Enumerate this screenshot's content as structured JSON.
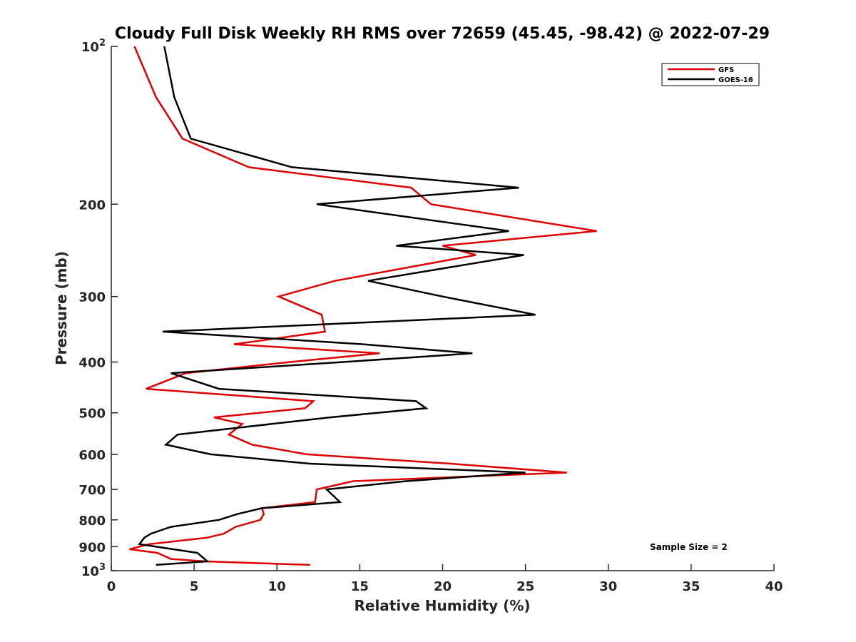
{
  "chart_data": {
    "type": "line",
    "title": "Cloudy Full Disk Weekly RH RMS over 72659 (45.45, -98.42) @ 2022-07-29",
    "xlabel": "Relative Humidity (%)",
    "ylabel": "Pressure (mb)",
    "xlim": [
      0,
      40
    ],
    "ylim": [
      100,
      1000
    ],
    "yscale": "log",
    "y_reversed": true,
    "x_ticks": [
      "0",
      "5",
      "10",
      "15",
      "20",
      "25",
      "30",
      "35",
      "40"
    ],
    "x_tick_values": [
      0,
      5,
      10,
      15,
      20,
      25,
      30,
      35,
      40
    ],
    "y_ticks": [
      {
        "value": 100,
        "base": "10",
        "exp": "2"
      },
      {
        "value": 200,
        "label": "200"
      },
      {
        "value": 300,
        "label": "300"
      },
      {
        "value": 400,
        "label": "400"
      },
      {
        "value": 500,
        "label": "500"
      },
      {
        "value": 600,
        "label": "600"
      },
      {
        "value": 700,
        "label": "700"
      },
      {
        "value": 800,
        "label": "800"
      },
      {
        "value": 900,
        "label": "900"
      },
      {
        "value": 1000,
        "base": "10",
        "exp": "3"
      }
    ],
    "grid": false,
    "legend_position": "top-right",
    "annotation": "Sample Size = 2",
    "series": [
      {
        "name": "GFS",
        "color": "#dd0000",
        "points": [
          {
            "x": 1.4,
            "y": 100
          },
          {
            "x": 2.7,
            "y": 125
          },
          {
            "x": 4.3,
            "y": 150
          },
          {
            "x": 8.3,
            "y": 170
          },
          {
            "x": 18.1,
            "y": 186
          },
          {
            "x": 19.3,
            "y": 200
          },
          {
            "x": 29.3,
            "y": 225
          },
          {
            "x": 20.0,
            "y": 240
          },
          {
            "x": 22.0,
            "y": 250
          },
          {
            "x": 13.5,
            "y": 280
          },
          {
            "x": 10.1,
            "y": 300
          },
          {
            "x": 12.7,
            "y": 325
          },
          {
            "x": 12.9,
            "y": 350
          },
          {
            "x": 7.4,
            "y": 370
          },
          {
            "x": 16.2,
            "y": 385
          },
          {
            "x": 10.8,
            "y": 400
          },
          {
            "x": 4.5,
            "y": 420
          },
          {
            "x": 2.1,
            "y": 450
          },
          {
            "x": 12.2,
            "y": 475
          },
          {
            "x": 11.7,
            "y": 490
          },
          {
            "x": 6.2,
            "y": 510
          },
          {
            "x": 7.9,
            "y": 525
          },
          {
            "x": 7.1,
            "y": 550
          },
          {
            "x": 8.5,
            "y": 575
          },
          {
            "x": 11.8,
            "y": 600
          },
          {
            "x": 20.5,
            "y": 625
          },
          {
            "x": 27.5,
            "y": 650
          },
          {
            "x": 14.6,
            "y": 675
          },
          {
            "x": 12.4,
            "y": 700
          },
          {
            "x": 12.3,
            "y": 740
          },
          {
            "x": 9.1,
            "y": 760
          },
          {
            "x": 9.2,
            "y": 780
          },
          {
            "x": 9.0,
            "y": 800
          },
          {
            "x": 7.5,
            "y": 825
          },
          {
            "x": 6.8,
            "y": 850
          },
          {
            "x": 5.8,
            "y": 865
          },
          {
            "x": 2.3,
            "y": 890
          },
          {
            "x": 1.1,
            "y": 910
          },
          {
            "x": 2.8,
            "y": 925
          },
          {
            "x": 3.6,
            "y": 950
          },
          {
            "x": 5.7,
            "y": 960
          },
          {
            "x": 12.0,
            "y": 975
          }
        ]
      },
      {
        "name": "GOES-16",
        "color": "#000000",
        "points": [
          {
            "x": 3.2,
            "y": 100
          },
          {
            "x": 3.8,
            "y": 125
          },
          {
            "x": 4.8,
            "y": 150
          },
          {
            "x": 10.9,
            "y": 170
          },
          {
            "x": 24.6,
            "y": 186
          },
          {
            "x": 12.4,
            "y": 200
          },
          {
            "x": 24.0,
            "y": 225
          },
          {
            "x": 17.2,
            "y": 240
          },
          {
            "x": 24.9,
            "y": 250
          },
          {
            "x": 15.5,
            "y": 280
          },
          {
            "x": 20.0,
            "y": 300
          },
          {
            "x": 25.6,
            "y": 325
          },
          {
            "x": 3.1,
            "y": 350
          },
          {
            "x": 15.2,
            "y": 370
          },
          {
            "x": 21.8,
            "y": 385
          },
          {
            "x": 14.0,
            "y": 400
          },
          {
            "x": 3.6,
            "y": 420
          },
          {
            "x": 6.5,
            "y": 450
          },
          {
            "x": 18.4,
            "y": 475
          },
          {
            "x": 19.0,
            "y": 490
          },
          {
            "x": 13.2,
            "y": 510
          },
          {
            "x": 4.0,
            "y": 550
          },
          {
            "x": 3.3,
            "y": 575
          },
          {
            "x": 6.0,
            "y": 600
          },
          {
            "x": 12.0,
            "y": 625
          },
          {
            "x": 25.0,
            "y": 650
          },
          {
            "x": 17.8,
            "y": 675
          },
          {
            "x": 13.0,
            "y": 700
          },
          {
            "x": 13.8,
            "y": 740
          },
          {
            "x": 9.1,
            "y": 760
          },
          {
            "x": 7.6,
            "y": 780
          },
          {
            "x": 6.5,
            "y": 800
          },
          {
            "x": 3.6,
            "y": 825
          },
          {
            "x": 2.4,
            "y": 850
          },
          {
            "x": 2.0,
            "y": 865
          },
          {
            "x": 1.7,
            "y": 890
          },
          {
            "x": 5.2,
            "y": 925
          },
          {
            "x": 5.8,
            "y": 960
          },
          {
            "x": 2.7,
            "y": 975
          }
        ]
      }
    ]
  }
}
